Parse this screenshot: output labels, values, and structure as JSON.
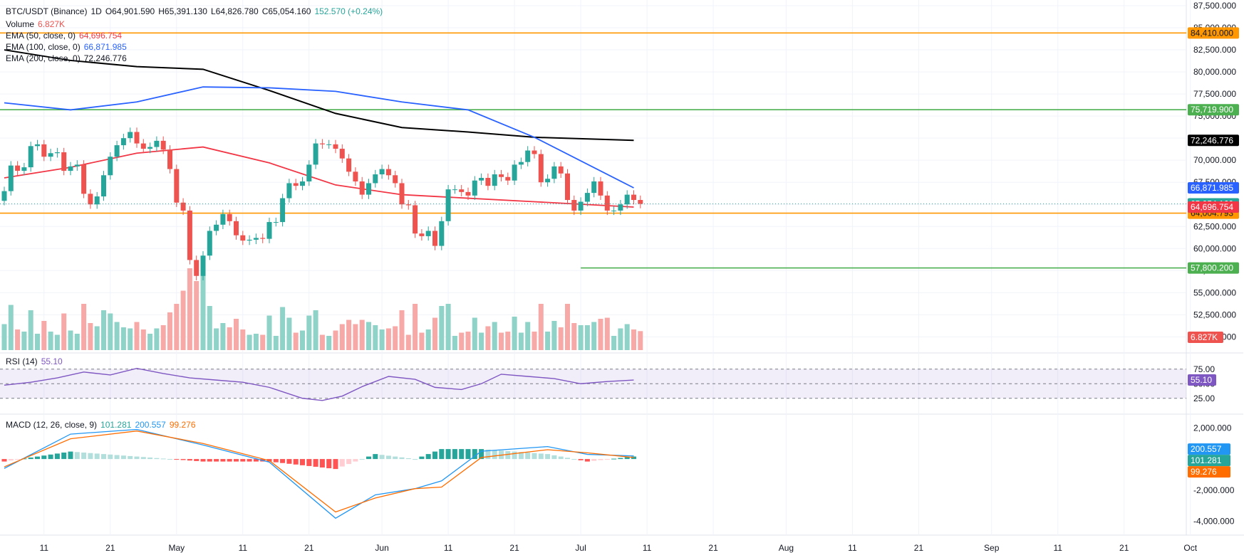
{
  "header": {
    "symbol": "BTC/USDT (Binance)",
    "interval": "1D",
    "open": "O64,901.590",
    "high": "H65,391.130",
    "low": "L64,826.780",
    "close": "C65,054.160",
    "change": "152.570 (+0.24%)",
    "volume_label": "Volume",
    "volume_value": "6.827K",
    "ema50_label": "EMA (50, close, 0)",
    "ema50_value": "64,696.754",
    "ema100_label": "EMA (100, close, 0)",
    "ema100_value": "66,871.985",
    "ema200_label": "EMA (200, close, 0)",
    "ema200_value": "72,246.776",
    "rsi_label": "RSI (14)",
    "rsi_value": "55.10",
    "macd_label": "MACD (12, 26, close, 9)",
    "macd_hist_value": "101.281",
    "macd_value": "200.557",
    "macd_signal_value": "99.276"
  },
  "colors": {
    "up": "#26a69a",
    "down": "#ef5350",
    "vol_up": "#8fd3c8",
    "vol_down": "#f7a9a7",
    "ema50": "#f23645",
    "ema100": "#2962ff",
    "ema200": "#000000",
    "orange": "#ff9800",
    "green": "#4caf50",
    "rsi": "#7e57c2",
    "macd": "#2196f3",
    "signal": "#ff6d00",
    "hist_up_strong": "#26a69a",
    "hist_up_weak": "#b2dfdb",
    "hist_down_strong": "#ff5252",
    "hist_down_weak": "#ffcdd2",
    "grid": "#f0f3fa",
    "text": "#131722"
  },
  "chart_data": {
    "type": "candlestick",
    "price_axis": {
      "min": 48500,
      "max": 87500,
      "ticks": [
        87500,
        85000,
        82500,
        80000,
        77500,
        75000,
        72500,
        70000,
        67500,
        65000,
        62500,
        60000,
        57500,
        55000,
        52500,
        50000
      ],
      "tick_labels": [
        "87,500.000",
        "85,000.000",
        "82,500.000",
        "80,000.000",
        "77,500.000",
        "75,000.000",
        "72,500.000",
        "70,000.000",
        "67,500.000",
        "65,000.000",
        "62,500.000",
        "60,000.000",
        "57,500.000",
        "55,000.000",
        "52,500.000",
        "50,000.000"
      ]
    },
    "x_axis_labels": [
      "11",
      "21",
      "May",
      "11",
      "21",
      "Jun",
      "11",
      "21",
      "Jul",
      "11",
      "21",
      "Aug",
      "11",
      "21",
      "Sep",
      "11",
      "21",
      "Oct"
    ],
    "x_axis_label_dates": [
      "2024-04-11",
      "2024-04-21",
      "2024-05-01",
      "2024-05-11",
      "2024-05-21",
      "2024-06-01",
      "2024-06-11",
      "2024-06-21",
      "2024-07-01",
      "2024-07-11",
      "2024-07-21",
      "2024-08-01",
      "2024-08-11",
      "2024-08-21",
      "2024-09-01",
      "2024-09-11",
      "2024-09-21",
      "2024-10-01"
    ],
    "horizontal_levels": [
      {
        "value": 84410,
        "label": "84,410.000",
        "color": "#ff9800"
      },
      {
        "value": 75719.9,
        "label": "75,719.900",
        "color": "#4caf50"
      },
      {
        "value": 64004.793,
        "label": "64,004.793",
        "color": "#ff9800"
      },
      {
        "value": 57800.2,
        "label": "57,800.200",
        "color": "#4caf50",
        "start_date": "2024-07-01"
      }
    ],
    "price_labels": [
      {
        "value": 72246.776,
        "label": "72,246.776",
        "bg": "#000000",
        "fg": "#ffffff"
      },
      {
        "value": 66871.985,
        "label": "66,871.985",
        "bg": "#2962ff",
        "fg": "#ffffff"
      },
      {
        "value": 65054.16,
        "label": "65,054.160",
        "bg": "#26a69a",
        "fg": "#ffffff"
      },
      {
        "value": 64696.754,
        "label": "64,696.754",
        "bg": "#f23645",
        "fg": "#ffffff"
      }
    ],
    "last_close": 65054.16,
    "volume_label": "6.827K",
    "candles": {
      "start_date": "2024-04-05",
      "open": [
        65400,
        66500,
        69400,
        68800,
        69200,
        71600,
        71800,
        70400,
        70800,
        70900,
        68800,
        69300,
        69500,
        66200,
        65000,
        65900,
        68300,
        70400,
        71700,
        72500,
        73200,
        71900,
        71300,
        71500,
        72200,
        71200,
        69000,
        65200,
        64300,
        58700,
        56900,
        59200,
        62000,
        62700,
        63900,
        63100,
        61500,
        60900,
        61000,
        61200,
        61100,
        63000,
        63000,
        65700,
        67400,
        67100,
        67600,
        69500,
        71900,
        71800,
        71800,
        71300,
        70200,
        68700,
        67600,
        66100,
        67400,
        68400,
        69000,
        68300,
        67400,
        65000,
        64900,
        61700,
        61400,
        62000,
        60300,
        63100,
        66700,
        66700,
        66400,
        66000,
        67700,
        68000,
        67100,
        68400,
        68100,
        67700,
        69500,
        69800,
        71100,
        70700,
        67500,
        67900,
        69300,
        68500,
        65500,
        64300,
        65300,
        66300,
        67600,
        66000,
        64300,
        64300,
        65000,
        66100,
        65500
      ],
      "close": [
        66500,
        69400,
        68800,
        69200,
        71600,
        71800,
        70400,
        70800,
        70900,
        68800,
        69300,
        69500,
        66200,
        65000,
        65900,
        68300,
        70400,
        71700,
        72500,
        73200,
        71900,
        71300,
        71500,
        72200,
        71200,
        69000,
        65200,
        64300,
        58700,
        56900,
        59200,
        62000,
        62700,
        63900,
        63100,
        61500,
        60900,
        61000,
        61200,
        61100,
        63000,
        63000,
        65700,
        67400,
        67100,
        67600,
        69500,
        71900,
        71800,
        71800,
        71300,
        70200,
        68700,
        67600,
        66100,
        67400,
        68400,
        69000,
        68300,
        67400,
        65000,
        64900,
        61700,
        61400,
        62000,
        60300,
        63100,
        66700,
        66700,
        66400,
        66000,
        67700,
        68000,
        67100,
        68400,
        68100,
        67700,
        69500,
        69800,
        71100,
        70700,
        67500,
        67900,
        69300,
        68500,
        65500,
        64300,
        65300,
        66300,
        67600,
        66000,
        64300,
        64300,
        65000,
        66100,
        65500,
        65054.16
      ]
    },
    "ema": {
      "ema50": [
        [
          0,
          68000
        ],
        [
          10,
          69200
        ],
        [
          20,
          70800
        ],
        [
          30,
          71500
        ],
        [
          40,
          69700
        ],
        [
          50,
          67200
        ],
        [
          60,
          66100
        ],
        [
          70,
          65700
        ],
        [
          80,
          65300
        ],
        [
          95,
          64697
        ]
      ],
      "ema100": [
        [
          0,
          76500
        ],
        [
          10,
          75700
        ],
        [
          20,
          76600
        ],
        [
          30,
          78300
        ],
        [
          40,
          78200
        ],
        [
          50,
          77800
        ],
        [
          60,
          76600
        ],
        [
          70,
          75700
        ],
        [
          80,
          72600
        ],
        [
          95,
          66872
        ]
      ],
      "ema200": [
        [
          0,
          82500
        ],
        [
          10,
          81300
        ],
        [
          20,
          80600
        ],
        [
          30,
          80300
        ],
        [
          40,
          77900
        ],
        [
          50,
          75300
        ],
        [
          60,
          73700
        ],
        [
          70,
          73200
        ],
        [
          80,
          72600
        ],
        [
          95,
          72247
        ]
      ]
    },
    "rsi": {
      "axis_labels": [
        "75.00",
        "50.00",
        "25.00"
      ],
      "levels": [
        70,
        50,
        30
      ],
      "current": 55.1,
      "points": [
        [
          0,
          48
        ],
        [
          4,
          52
        ],
        [
          8,
          58
        ],
        [
          12,
          66
        ],
        [
          16,
          62
        ],
        [
          20,
          71
        ],
        [
          24,
          64
        ],
        [
          28,
          58
        ],
        [
          32,
          55
        ],
        [
          36,
          52
        ],
        [
          40,
          45
        ],
        [
          45,
          30
        ],
        [
          48,
          27
        ],
        [
          51,
          33
        ],
        [
          54,
          46
        ],
        [
          58,
          60
        ],
        [
          62,
          56
        ],
        [
          65,
          45
        ],
        [
          69,
          42
        ],
        [
          72,
          50
        ],
        [
          75,
          63
        ],
        [
          79,
          60
        ],
        [
          83,
          57
        ],
        [
          87,
          50
        ],
        [
          91,
          53
        ],
        [
          95,
          55.1
        ]
      ]
    },
    "macd": {
      "axis_labels": [
        "2,000.000",
        "-2,000.000",
        "-4,000.000"
      ],
      "ticks": [
        2000,
        -2000,
        -4000
      ],
      "macd_line": [
        [
          0,
          -600
        ],
        [
          10,
          1600
        ],
        [
          20,
          1900
        ],
        [
          30,
          900
        ],
        [
          40,
          -200
        ],
        [
          50,
          -3800
        ],
        [
          56,
          -2300
        ],
        [
          62,
          -1900
        ],
        [
          66,
          -1400
        ],
        [
          72,
          500
        ],
        [
          82,
          800
        ],
        [
          88,
          300
        ],
        [
          95,
          200.557
        ]
      ],
      "signal_line": [
        [
          0,
          -500
        ],
        [
          10,
          1300
        ],
        [
          20,
          1800
        ],
        [
          30,
          1000
        ],
        [
          40,
          -100
        ],
        [
          50,
          -3400
        ],
        [
          56,
          -2500
        ],
        [
          62,
          -1900
        ],
        [
          66,
          -1800
        ],
        [
          72,
          100
        ],
        [
          82,
          600
        ],
        [
          88,
          400
        ],
        [
          95,
          99.276
        ]
      ]
    }
  }
}
